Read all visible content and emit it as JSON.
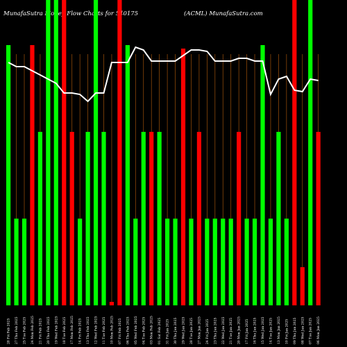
{
  "header": {
    "left": "MunafaSutra  Money Flow  Charts for 540175",
    "right": "(ACML) MunafaSutra.com"
  },
  "chart_data": {
    "type": "bar",
    "title": "MunafaSutra  Money Flow  Charts for 540175",
    "colors": {
      "up": "#00ff00",
      "down": "#ff0000",
      "line": "#ffffff",
      "grid": "#a0520a",
      "background": "#000000"
    },
    "ylim": [
      0,
      100
    ],
    "categories": [
      "28 Fri Feb 2025",
      "27 Thu Feb 2025",
      "25 Tue Feb 2025",
      "24 Mon Feb 2025",
      "21 Fri Feb 2025",
      "20 Thu Feb 2025",
      "19 Wed Feb 2025",
      "18 Tue Feb 2025",
      "17 Mon Feb 2025",
      "14 Fri Feb 2025",
      "13 Thu Feb 2025",
      "12 Wed Feb 2025",
      "11 Tue Feb 2025",
      "10 Mon Feb 2025",
      "07 Fri Feb 2025",
      "06 Thu Feb 2025",
      "05 Wed Feb 2025",
      "04 Tue Feb 2025",
      "03 Mon Feb 2025",
      "01 Sat Feb 2025",
      "31 Fri Jan 2025",
      "30 Thu Jan 2025",
      "29 Wed Jan 2025",
      "28 Tue Jan 2025",
      "27 Mon Jan 2025",
      "24 Fri Jan 2025",
      "23 Thu Jan 2025",
      "22 Wed Jan 2025",
      "21 Tue Jan 2025",
      "20 Mon Jan 2025",
      "17 Fri Jan 2025",
      "16 Thu Jan 2025",
      "15 Wed Jan 2025",
      "14 Tue Jan 2025",
      "13 Mon Jan 2025",
      "10 Fri Jan 2025",
      "09 Thu Jan 2025",
      "08 Wed Jan 2025",
      "07 Tue Jan 2025",
      "06 Mon Jan 2025"
    ],
    "series": [
      {
        "values": [
          75,
          25,
          25,
          75,
          50,
          100,
          100,
          100,
          50,
          25,
          50,
          90,
          50,
          1,
          100,
          75,
          25,
          50,
          50,
          50,
          25,
          25,
          74,
          25,
          50,
          25,
          25,
          25,
          25,
          50,
          25,
          25,
          75,
          25,
          50,
          25,
          100,
          11,
          95,
          50
        ],
        "colors": [
          "up",
          "up",
          "up",
          "down",
          "up",
          "up",
          "up",
          "down",
          "down",
          "up",
          "up",
          "up",
          "up",
          "down",
          "down",
          "up",
          "up",
          "up",
          "down",
          "up",
          "up",
          "up",
          "down",
          "up",
          "down",
          "up",
          "up",
          "up",
          "up",
          "down",
          "up",
          "up",
          "up",
          "up",
          "up",
          "up",
          "down",
          "down",
          "up",
          "down"
        ]
      },
      {
        "values": [
          75,
          72,
          72,
          69,
          66,
          63,
          60,
          53,
          53,
          52,
          47,
          53,
          53,
          75,
          75,
          75,
          86,
          84,
          76,
          76,
          76,
          76,
          80,
          84,
          84,
          83,
          76,
          76,
          76,
          78,
          78,
          76,
          76,
          52,
          63,
          65,
          55,
          54,
          63,
          62
        ]
      }
    ]
  }
}
